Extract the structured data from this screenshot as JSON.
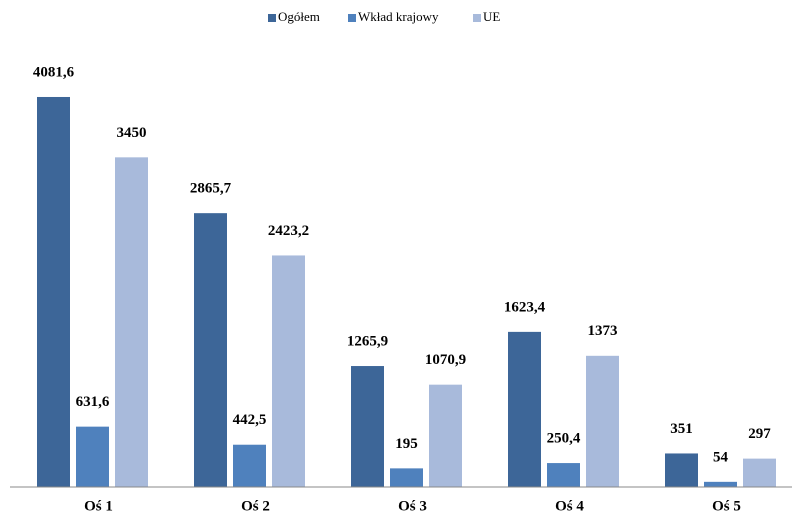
{
  "chart_data": {
    "type": "bar",
    "categories": [
      "Oś 1",
      "Oś 2",
      "Oś 3",
      "Oś 4",
      "Oś 5"
    ],
    "series": [
      {
        "name": "Ogółem",
        "color": "#3d6698",
        "values": [
          4081.6,
          2865.7,
          1265.9,
          1623.4,
          351
        ],
        "value_labels": [
          "4081,6",
          "2865,7",
          "1265,9",
          "1623,4",
          "351"
        ]
      },
      {
        "name": "Wkład krajowy",
        "color": "#4f81bd",
        "values": [
          631.6,
          442.5,
          195,
          250.4,
          54
        ],
        "value_labels": [
          "631,6",
          "442,5",
          "195",
          "250,4",
          "54"
        ]
      },
      {
        "name": "UE",
        "color": "#a8badb",
        "values": [
          3450,
          2423.2,
          1070.9,
          1373,
          297
        ],
        "value_labels": [
          "3450",
          "2423,2",
          "1070,9",
          "1373",
          "297"
        ]
      }
    ],
    "ylim": [
      0,
      4500
    ],
    "legend": "top"
  }
}
